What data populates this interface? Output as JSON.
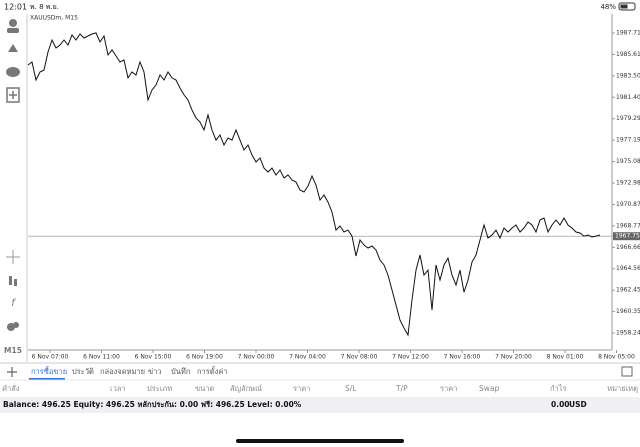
{
  "status_bar": {
    "time": "12:01",
    "date": "พ. 8 พ.ย.",
    "battery": "48%"
  },
  "toolbar": {
    "timeframe": "M15"
  },
  "chart_data": {
    "type": "line",
    "title": "XAUUSDm, M15",
    "series": [
      {
        "name": "XAUUSDm",
        "color": "#111111",
        "values": [
          1984.57,
          1984.87,
          1983.1,
          1983.88,
          1984.08,
          1985.85,
          1987.03,
          1986.24,
          1986.54,
          1987.03,
          1986.54,
          1987.52,
          1987.03,
          1987.62,
          1987.22,
          1987.42,
          1987.62,
          1987.72,
          1986.83,
          1987.42,
          1985.55,
          1986.05,
          1985.46,
          1984.87,
          1985.06,
          1983.3,
          1983.88,
          1983.59,
          1984.87,
          1983.88,
          1981.13,
          1982.12,
          1982.61,
          1983.59,
          1983.1,
          1983.88,
          1983.3,
          1983.1,
          1982.31,
          1981.63,
          1981.13,
          1980.15,
          1979.37,
          1978.97,
          1978.19,
          1979.66,
          1978.19,
          1977.2,
          1977.7,
          1976.71,
          1977.4,
          1977.2,
          1978.19,
          1977.2,
          1976.22,
          1976.71,
          1975.73,
          1975.04,
          1975.44,
          1974.45,
          1974.06,
          1974.45,
          1973.77,
          1974.26,
          1973.47,
          1973.77,
          1973.28,
          1973.08,
          1972.29,
          1972.1,
          1972.69,
          1973.67,
          1972.78,
          1971.31,
          1971.8,
          1971.11,
          1970.13,
          1968.36,
          1968.76,
          1968.17,
          1968.36,
          1967.77,
          1965.81,
          1967.38,
          1966.89,
          1966.6,
          1966.79,
          1966.4,
          1965.42,
          1964.93,
          1963.94,
          1962.47,
          1961.0,
          1959.52,
          1958.74,
          1958.05,
          1961.49,
          1964.43,
          1965.91,
          1963.94,
          1964.43,
          1960.51,
          1964.93,
          1963.45,
          1964.93,
          1965.61,
          1963.94,
          1962.96,
          1964.43,
          1962.27,
          1963.45,
          1965.22,
          1965.91,
          1967.38,
          1968.86,
          1967.58,
          1967.87,
          1968.36,
          1967.58,
          1968.56,
          1968.17,
          1968.56,
          1968.86,
          1968.17,
          1968.56,
          1969.15,
          1968.86,
          1968.17,
          1969.35,
          1969.54,
          1968.17,
          1968.86,
          1969.35,
          1968.86,
          1969.54,
          1968.86,
          1968.56,
          1968.17,
          1968.07,
          1967.77,
          1967.87,
          1967.68,
          1967.77,
          1967.87
        ]
      }
    ],
    "current_price": 1967.757,
    "ylim": [
      1956.58,
      1989.58
    ],
    "yticks": [
      1987.715,
      {
        "value": 1985.61,
        "label": "1985.610"
      },
      1983.505,
      {
        "value": 1981.4,
        "label": "1981.400"
      },
      1979.295,
      {
        "value": 1977.19,
        "label": "1977.190"
      },
      1975.085,
      {
        "value": 1972.98,
        "label": "1972.980"
      },
      1970.875,
      {
        "value": 1968.77,
        "label": "1968.770"
      },
      1966.665,
      {
        "value": 1964.56,
        "label": "1964.560"
      },
      1962.455,
      {
        "value": 1960.35,
        "label": "1960.350"
      },
      1958.245
    ],
    "xtick_labels": [
      "6 Nov 07:00",
      "6 Nov 11:00",
      "6 Nov 15:00",
      "6 Nov 19:00",
      "7 Nov 00:00",
      "7 Nov 04:00",
      "7 Nov 08:00",
      "7 Nov 12:00",
      "7 Nov 16:00",
      "7 Nov 20:00",
      "8 Nov 01:00",
      "8 Nov 05:00"
    ]
  },
  "tabs": [
    "การซื้อขาย",
    "ประวัติ",
    "กล่องจดหมาย",
    "ข่าว",
    "บันทึก",
    "การตั้งค่า"
  ],
  "columns": [
    "คำสั่ง",
    "เวลา",
    "ประเภท",
    "ขนาด",
    "สัญลักษณ์",
    "ราคา",
    "S/L",
    "T/P",
    "ราคา",
    "Swap",
    "กำไร",
    "หมายเหตุ"
  ],
  "summary": {
    "balance": "Balance: 496.25 Equity: 496.25 หลักประกัน: 0.00 ฟรี: 496.25 Level: 0.00%",
    "profit": "0.00",
    "currency": "USD"
  }
}
